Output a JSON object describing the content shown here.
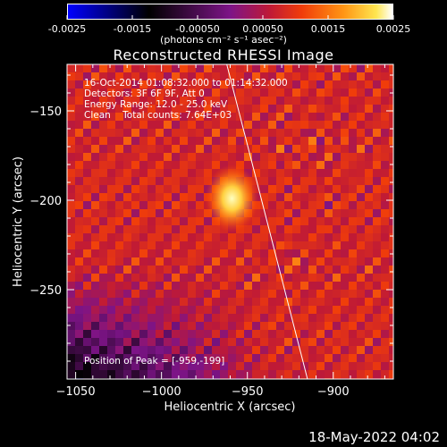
{
  "colorbar": {
    "ticks": [
      "-0.0025",
      "-0.0015",
      "-0.00050",
      "0.00050",
      "0.0015",
      "0.0025"
    ],
    "units_text": "(photons cm⁻² s⁻¹ asec⁻²)",
    "range": [
      -0.0025,
      0.0025
    ]
  },
  "chart_data": {
    "type": "heatmap",
    "title": "Reconstructed RHESSI Image",
    "xlabel": "Heliocentric X (arcsec)",
    "ylabel": "Heliocentric Y (arcsec)",
    "xlim": [
      -1055,
      -865
    ],
    "ylim": [
      -300,
      -124
    ],
    "x_ticks": [
      -1050,
      -1000,
      -950,
      -900
    ],
    "y_ticks": [
      -150,
      -200,
      -250
    ],
    "annotations": [
      "16-Oct-2014 01:08:32.000 to 01:14:32.000",
      "Detectors: 3F 6F 9F, Att 0",
      "Energy Range: 12.0 - 25.0 keV",
      "Clean    Total counts: 7.64E+03",
      "Position of Peak = [-959,-199]"
    ],
    "peak": {
      "x": -959,
      "y": -199
    },
    "limb_line": {
      "x": [
        -962,
        -915
      ],
      "y": [
        -124,
        -300
      ]
    }
  },
  "footer": {
    "date": "18-May-2022 04:02"
  }
}
